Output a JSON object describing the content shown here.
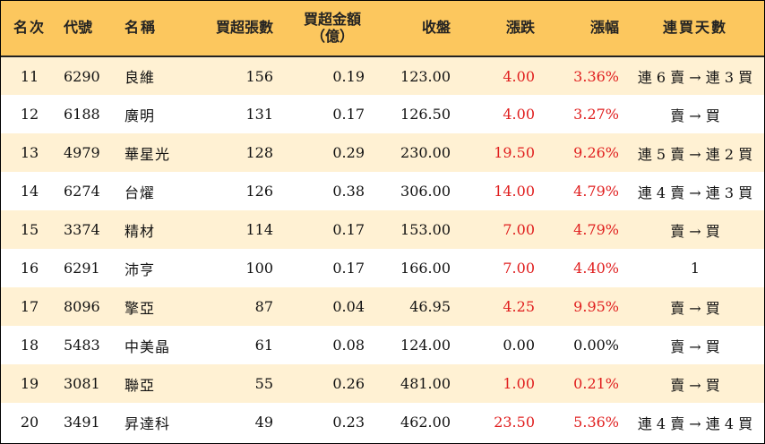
{
  "headers": {
    "rank": "名次",
    "code": "代號",
    "name": "名稱",
    "buy_lots": "買超張數",
    "amount_line1": "買超金額",
    "amount_line2": "（億）",
    "close": "收盤",
    "change": "漲跌",
    "pct": "漲幅",
    "days": "連買天數"
  },
  "colors": {
    "header_bg": "#fcc75e",
    "stripe_bg": "#fff1d3",
    "up": "#e01e1e"
  },
  "rows": [
    {
      "rank": "11",
      "code": "6290",
      "name": "良維",
      "buy_lots": "156",
      "amount": "0.19",
      "close": "123.00",
      "change": "4.00",
      "pct": "3.36%",
      "days": "連 6 賣 → 連 3 買",
      "dir": "up"
    },
    {
      "rank": "12",
      "code": "6188",
      "name": "廣明",
      "buy_lots": "131",
      "amount": "0.17",
      "close": "126.50",
      "change": "4.00",
      "pct": "3.27%",
      "days": "賣 → 買",
      "dir": "up"
    },
    {
      "rank": "13",
      "code": "4979",
      "name": "華星光",
      "buy_lots": "128",
      "amount": "0.29",
      "close": "230.00",
      "change": "19.50",
      "pct": "9.26%",
      "days": "連 5 賣 → 連 2 買",
      "dir": "up"
    },
    {
      "rank": "14",
      "code": "6274",
      "name": "台燿",
      "buy_lots": "126",
      "amount": "0.38",
      "close": "306.00",
      "change": "14.00",
      "pct": "4.79%",
      "days": "連 4 賣 → 連 3 買",
      "dir": "up"
    },
    {
      "rank": "15",
      "code": "3374",
      "name": "精材",
      "buy_lots": "114",
      "amount": "0.17",
      "close": "153.00",
      "change": "7.00",
      "pct": "4.79%",
      "days": "賣 → 買",
      "dir": "up"
    },
    {
      "rank": "16",
      "code": "6291",
      "name": "沛亨",
      "buy_lots": "100",
      "amount": "0.17",
      "close": "166.00",
      "change": "7.00",
      "pct": "4.40%",
      "days": "1",
      "dir": "up"
    },
    {
      "rank": "17",
      "code": "8096",
      "name": "擎亞",
      "buy_lots": "87",
      "amount": "0.04",
      "close": "46.95",
      "change": "4.25",
      "pct": "9.95%",
      "days": "賣 → 買",
      "dir": "up"
    },
    {
      "rank": "18",
      "code": "5483",
      "name": "中美晶",
      "buy_lots": "61",
      "amount": "0.08",
      "close": "124.00",
      "change": "0.00",
      "pct": "0.00%",
      "days": "賣 → 買",
      "dir": "flat"
    },
    {
      "rank": "19",
      "code": "3081",
      "name": "聯亞",
      "buy_lots": "55",
      "amount": "0.26",
      "close": "481.00",
      "change": "1.00",
      "pct": "0.21%",
      "days": "賣 → 買",
      "dir": "up"
    },
    {
      "rank": "20",
      "code": "3491",
      "name": "昇達科",
      "buy_lots": "49",
      "amount": "0.23",
      "close": "462.00",
      "change": "23.50",
      "pct": "5.36%",
      "days": "連 4 賣 → 連 4 買",
      "dir": "up"
    }
  ]
}
